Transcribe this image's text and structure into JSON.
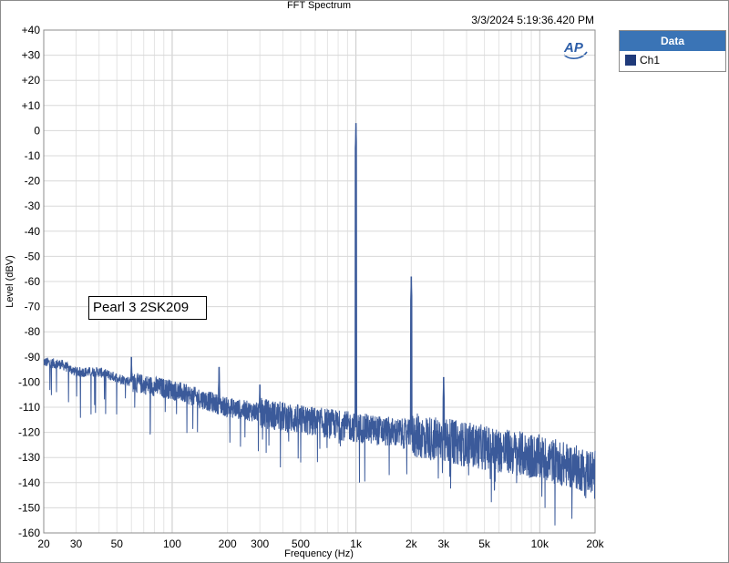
{
  "chart_data": {
    "type": "line",
    "title": "FFT Spectrum",
    "timestamp": "3/3/2024 5:19:36.420 PM",
    "xlabel": "Frequency (Hz)",
    "ylabel": "Level (dBV)",
    "x_scale": "log",
    "xlim": [
      20,
      20000
    ],
    "ylim": [
      -160,
      40
    ],
    "x_ticks": [
      {
        "v": 20,
        "label": "20"
      },
      {
        "v": 30,
        "label": "30"
      },
      {
        "v": 50,
        "label": "50"
      },
      {
        "v": 100,
        "label": "100"
      },
      {
        "v": 200,
        "label": "200"
      },
      {
        "v": 300,
        "label": "300"
      },
      {
        "v": 500,
        "label": "500"
      },
      {
        "v": 1000,
        "label": "1k"
      },
      {
        "v": 2000,
        "label": "2k"
      },
      {
        "v": 3000,
        "label": "3k"
      },
      {
        "v": 5000,
        "label": "5k"
      },
      {
        "v": 10000,
        "label": "10k"
      },
      {
        "v": 20000,
        "label": "20k"
      }
    ],
    "y_ticks": [
      {
        "v": 40,
        "label": "+40"
      },
      {
        "v": 30,
        "label": "+30"
      },
      {
        "v": 20,
        "label": "+20"
      },
      {
        "v": 10,
        "label": "+10"
      },
      {
        "v": 0,
        "label": "0"
      },
      {
        "v": -10,
        "label": "-10"
      },
      {
        "v": -20,
        "label": "-20"
      },
      {
        "v": -30,
        "label": "-30"
      },
      {
        "v": -40,
        "label": "-40"
      },
      {
        "v": -50,
        "label": "-50"
      },
      {
        "v": -60,
        "label": "-60"
      },
      {
        "v": -70,
        "label": "-70"
      },
      {
        "v": -80,
        "label": "-80"
      },
      {
        "v": -90,
        "label": "-90"
      },
      {
        "v": -100,
        "label": "-100"
      },
      {
        "v": -110,
        "label": "-110"
      },
      {
        "v": -120,
        "label": "-120"
      },
      {
        "v": -130,
        "label": "-130"
      },
      {
        "v": -140,
        "label": "-140"
      },
      {
        "v": -150,
        "label": "-150"
      },
      {
        "v": -160,
        "label": "-160"
      }
    ],
    "grid": true,
    "legend_position": "right",
    "series": [
      {
        "name": "Ch1",
        "color": "#3b5a9a",
        "noise_floor": [
          {
            "f": 20,
            "db": -92
          },
          {
            "f": 25,
            "db": -93
          },
          {
            "f": 30,
            "db": -96
          },
          {
            "f": 40,
            "db": -96
          },
          {
            "f": 60,
            "db": -100
          },
          {
            "f": 100,
            "db": -103
          },
          {
            "f": 200,
            "db": -110
          },
          {
            "f": 500,
            "db": -115
          },
          {
            "f": 1000,
            "db": -118
          },
          {
            "f": 2000,
            "db": -121
          },
          {
            "f": 5000,
            "db": -126
          },
          {
            "f": 10000,
            "db": -130
          },
          {
            "f": 20000,
            "db": -136
          }
        ],
        "peaks": [
          {
            "f": 60,
            "db": -90
          },
          {
            "f": 180,
            "db": -94
          },
          {
            "f": 300,
            "db": -101
          },
          {
            "f": 1000,
            "db": 3
          },
          {
            "f": 2000,
            "db": -58
          },
          {
            "f": 3000,
            "db": -98
          }
        ]
      }
    ]
  },
  "legend": {
    "header": "Data",
    "items": [
      {
        "label": "Ch1",
        "color": "#1f3a7a"
      }
    ]
  },
  "annotation": "Pearl 3 2SK209",
  "logo_text": "AP"
}
